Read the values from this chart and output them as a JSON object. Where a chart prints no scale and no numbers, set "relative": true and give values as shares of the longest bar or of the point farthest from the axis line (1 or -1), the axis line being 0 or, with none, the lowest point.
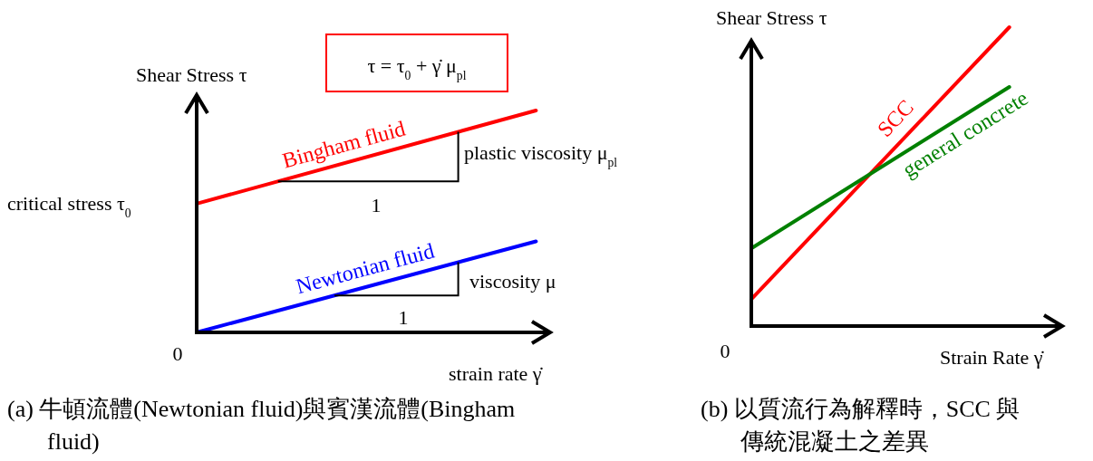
{
  "chart_data": [
    {
      "type": "line",
      "relative": true,
      "title": "(a) 牛頓流體(Newtonian fluid)與賓漢流體(Bingham fluid)",
      "xlabel": "strain rate γ̇",
      "ylabel": "Shear Stress τ",
      "categories": [
        null,
        null
      ],
      "series": [
        {
          "name": "Bingham fluid",
          "color": "#ff0000",
          "values": [
            0.58,
            1
          ]
        },
        {
          "name": "Newtonian fluid",
          "color": "#0000ff",
          "values": [
            0,
            0.41
          ]
        }
      ],
      "annotations": [
        "τ = τ$_{0}$ + γ̇ μ$_{pl}$",
        "critical stress τ$_{0}$",
        "plastic viscosity μ$_{pl}$",
        "1",
        "viscosity μ",
        "1",
        "0"
      ]
    },
    {
      "type": "line",
      "relative": true,
      "title": "(b) 以質流行為解釋時，SCC 與傳統混凝土之差異",
      "xlabel": "Strain Rate γ̇",
      "ylabel": "Shear Stress τ",
      "categories": [
        null,
        null
      ],
      "series": [
        {
          "name": "SCC",
          "color": "#ff0000",
          "values": [
            0.09,
            1
          ]
        },
        {
          "name": "general concrete",
          "color": "#008000",
          "values": [
            0.26,
            0.8
          ]
        }
      ],
      "annotations": [
        "0"
      ]
    }
  ]
}
